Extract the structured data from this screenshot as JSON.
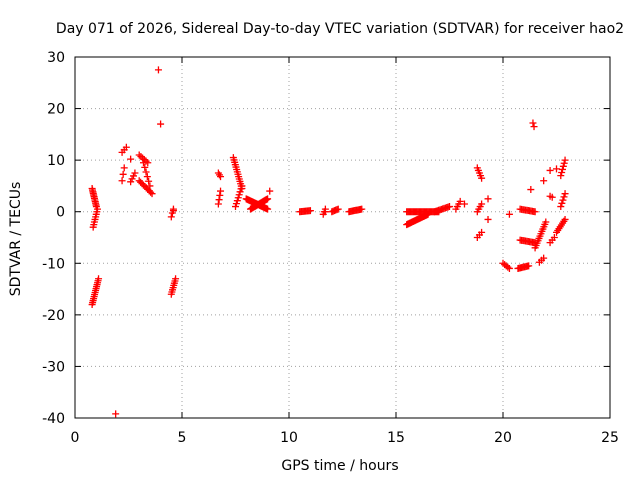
{
  "chart_data": {
    "type": "scatter",
    "title": "Day 071 of 2026, Sidereal Day-to-day VTEC variation (SDTVAR) for receiver hao2",
    "xlabel": "GPS time / hours",
    "ylabel": "SDTVAR / TECUs",
    "xlim": [
      0,
      25
    ],
    "ylim": [
      -40,
      30
    ],
    "xticks": [
      0,
      5,
      10,
      15,
      20,
      25
    ],
    "yticks": [
      -40,
      -30,
      -20,
      -10,
      0,
      10,
      20,
      30
    ],
    "grid": true,
    "marker": "+",
    "series": [
      {
        "name": "SDTVAR",
        "color": "#ff0000",
        "segments": [
          {
            "from": [
              0.8,
              4.5
            ],
            "to": [
              1.0,
              1.0
            ],
            "n": 12
          },
          {
            "from": [
              0.85,
              -3.0
            ],
            "to": [
              1.05,
              0.5
            ],
            "n": 8
          },
          {
            "from": [
              0.8,
              -18.0
            ],
            "to": [
              1.1,
              -13.0
            ],
            "n": 14
          },
          {
            "from": [
              2.2,
              6.0
            ],
            "to": [
              2.3,
              8.5
            ],
            "n": 3
          },
          {
            "from": [
              2.2,
              11.5
            ],
            "to": [
              2.4,
              12.5
            ],
            "n": 3
          },
          {
            "from": [
              2.6,
              5.8
            ],
            "to": [
              2.8,
              7.5
            ],
            "n": 4
          },
          {
            "from": [
              3.0,
              11.0
            ],
            "to": [
              3.4,
              9.5
            ],
            "n": 6
          },
          {
            "from": [
              3.0,
              6.0
            ],
            "to": [
              3.6,
              3.5
            ],
            "n": 10
          },
          {
            "from": [
              3.2,
              9.5
            ],
            "to": [
              3.5,
              5.0
            ],
            "n": 6
          },
          {
            "from": [
              4.5,
              -1.0
            ],
            "to": [
              4.6,
              0.5
            ],
            "n": 3
          },
          {
            "from": [
              4.5,
              -16.0
            ],
            "to": [
              4.7,
              -13.0
            ],
            "n": 8
          },
          {
            "from": [
              6.7,
              7.5
            ],
            "to": [
              6.8,
              6.8
            ],
            "n": 3
          },
          {
            "from": [
              6.7,
              1.5
            ],
            "to": [
              6.8,
              4.0
            ],
            "n": 4
          },
          {
            "from": [
              7.4,
              10.5
            ],
            "to": [
              7.8,
              4.5
            ],
            "n": 14
          },
          {
            "from": [
              7.5,
              1.0
            ],
            "to": [
              7.8,
              5.0
            ],
            "n": 8
          },
          {
            "from": [
              8.0,
              2.5
            ],
            "to": [
              9.0,
              0.5
            ],
            "n": 28
          },
          {
            "from": [
              8.2,
              0.5
            ],
            "to": [
              9.0,
              2.5
            ],
            "n": 22
          },
          {
            "from": [
              10.5,
              0.0
            ],
            "to": [
              11.0,
              0.2
            ],
            "n": 10
          },
          {
            "from": [
              11.6,
              -0.5
            ],
            "to": [
              11.7,
              0.5
            ],
            "n": 3
          },
          {
            "from": [
              12.0,
              0.0
            ],
            "to": [
              12.3,
              0.5
            ],
            "n": 6
          },
          {
            "from": [
              12.8,
              0.0
            ],
            "to": [
              13.4,
              0.5
            ],
            "n": 12
          },
          {
            "from": [
              15.5,
              -2.5
            ],
            "to": [
              16.5,
              -0.5
            ],
            "n": 24
          },
          {
            "from": [
              15.5,
              0.0
            ],
            "to": [
              17.0,
              0.0
            ],
            "n": 30
          },
          {
            "from": [
              16.8,
              0.0
            ],
            "to": [
              17.5,
              1.0
            ],
            "n": 12
          },
          {
            "from": [
              17.8,
              0.5
            ],
            "to": [
              18.0,
              2.0
            ],
            "n": 4
          },
          {
            "from": [
              18.8,
              8.5
            ],
            "to": [
              19.0,
              6.5
            ],
            "n": 5
          },
          {
            "from": [
              18.8,
              -5.0
            ],
            "to": [
              19.0,
              -4.0
            ],
            "n": 3
          },
          {
            "from": [
              18.8,
              0.0
            ],
            "to": [
              19.0,
              1.5
            ],
            "n": 4
          },
          {
            "from": [
              20.0,
              -10.0
            ],
            "to": [
              20.3,
              -11.0
            ],
            "n": 5
          },
          {
            "from": [
              20.7,
              -11.0
            ],
            "to": [
              21.2,
              -10.5
            ],
            "n": 10
          },
          {
            "from": [
              20.8,
              -5.5
            ],
            "to": [
              21.5,
              -6.0
            ],
            "n": 12
          },
          {
            "from": [
              20.8,
              0.5
            ],
            "to": [
              21.5,
              0.0
            ],
            "n": 12
          },
          {
            "from": [
              21.5,
              -7.0
            ],
            "to": [
              22.0,
              -2.0
            ],
            "n": 12
          },
          {
            "from": [
              21.7,
              -9.8
            ],
            "to": [
              21.9,
              -9.0
            ],
            "n": 3
          },
          {
            "from": [
              22.2,
              -6.0
            ],
            "to": [
              22.4,
              -5.0
            ],
            "n": 3
          },
          {
            "from": [
              22.5,
              -4.0
            ],
            "to": [
              22.9,
              -1.5
            ],
            "n": 8
          },
          {
            "from": [
              22.7,
              7.0
            ],
            "to": [
              22.9,
              10.0
            ],
            "n": 6
          },
          {
            "from": [
              22.7,
              1.0
            ],
            "to": [
              22.9,
              3.5
            ],
            "n": 5
          }
        ],
        "points": [
          [
            1.9,
            -39.2
          ],
          [
            3.9,
            27.5
          ],
          [
            4.0,
            17.0
          ],
          [
            2.6,
            10.2
          ],
          [
            4.6,
            0.2
          ],
          [
            9.1,
            4.0
          ],
          [
            11.7,
            0.0
          ],
          [
            18.2,
            1.5
          ],
          [
            19.3,
            2.5
          ],
          [
            19.3,
            -1.5
          ],
          [
            20.3,
            -0.5
          ],
          [
            21.4,
            17.2
          ],
          [
            21.45,
            16.5
          ],
          [
            21.3,
            4.3
          ],
          [
            21.9,
            6.0
          ],
          [
            22.2,
            3.0
          ],
          [
            22.2,
            8.0
          ],
          [
            22.5,
            8.3
          ],
          [
            22.3,
            2.8
          ]
        ]
      }
    ]
  }
}
